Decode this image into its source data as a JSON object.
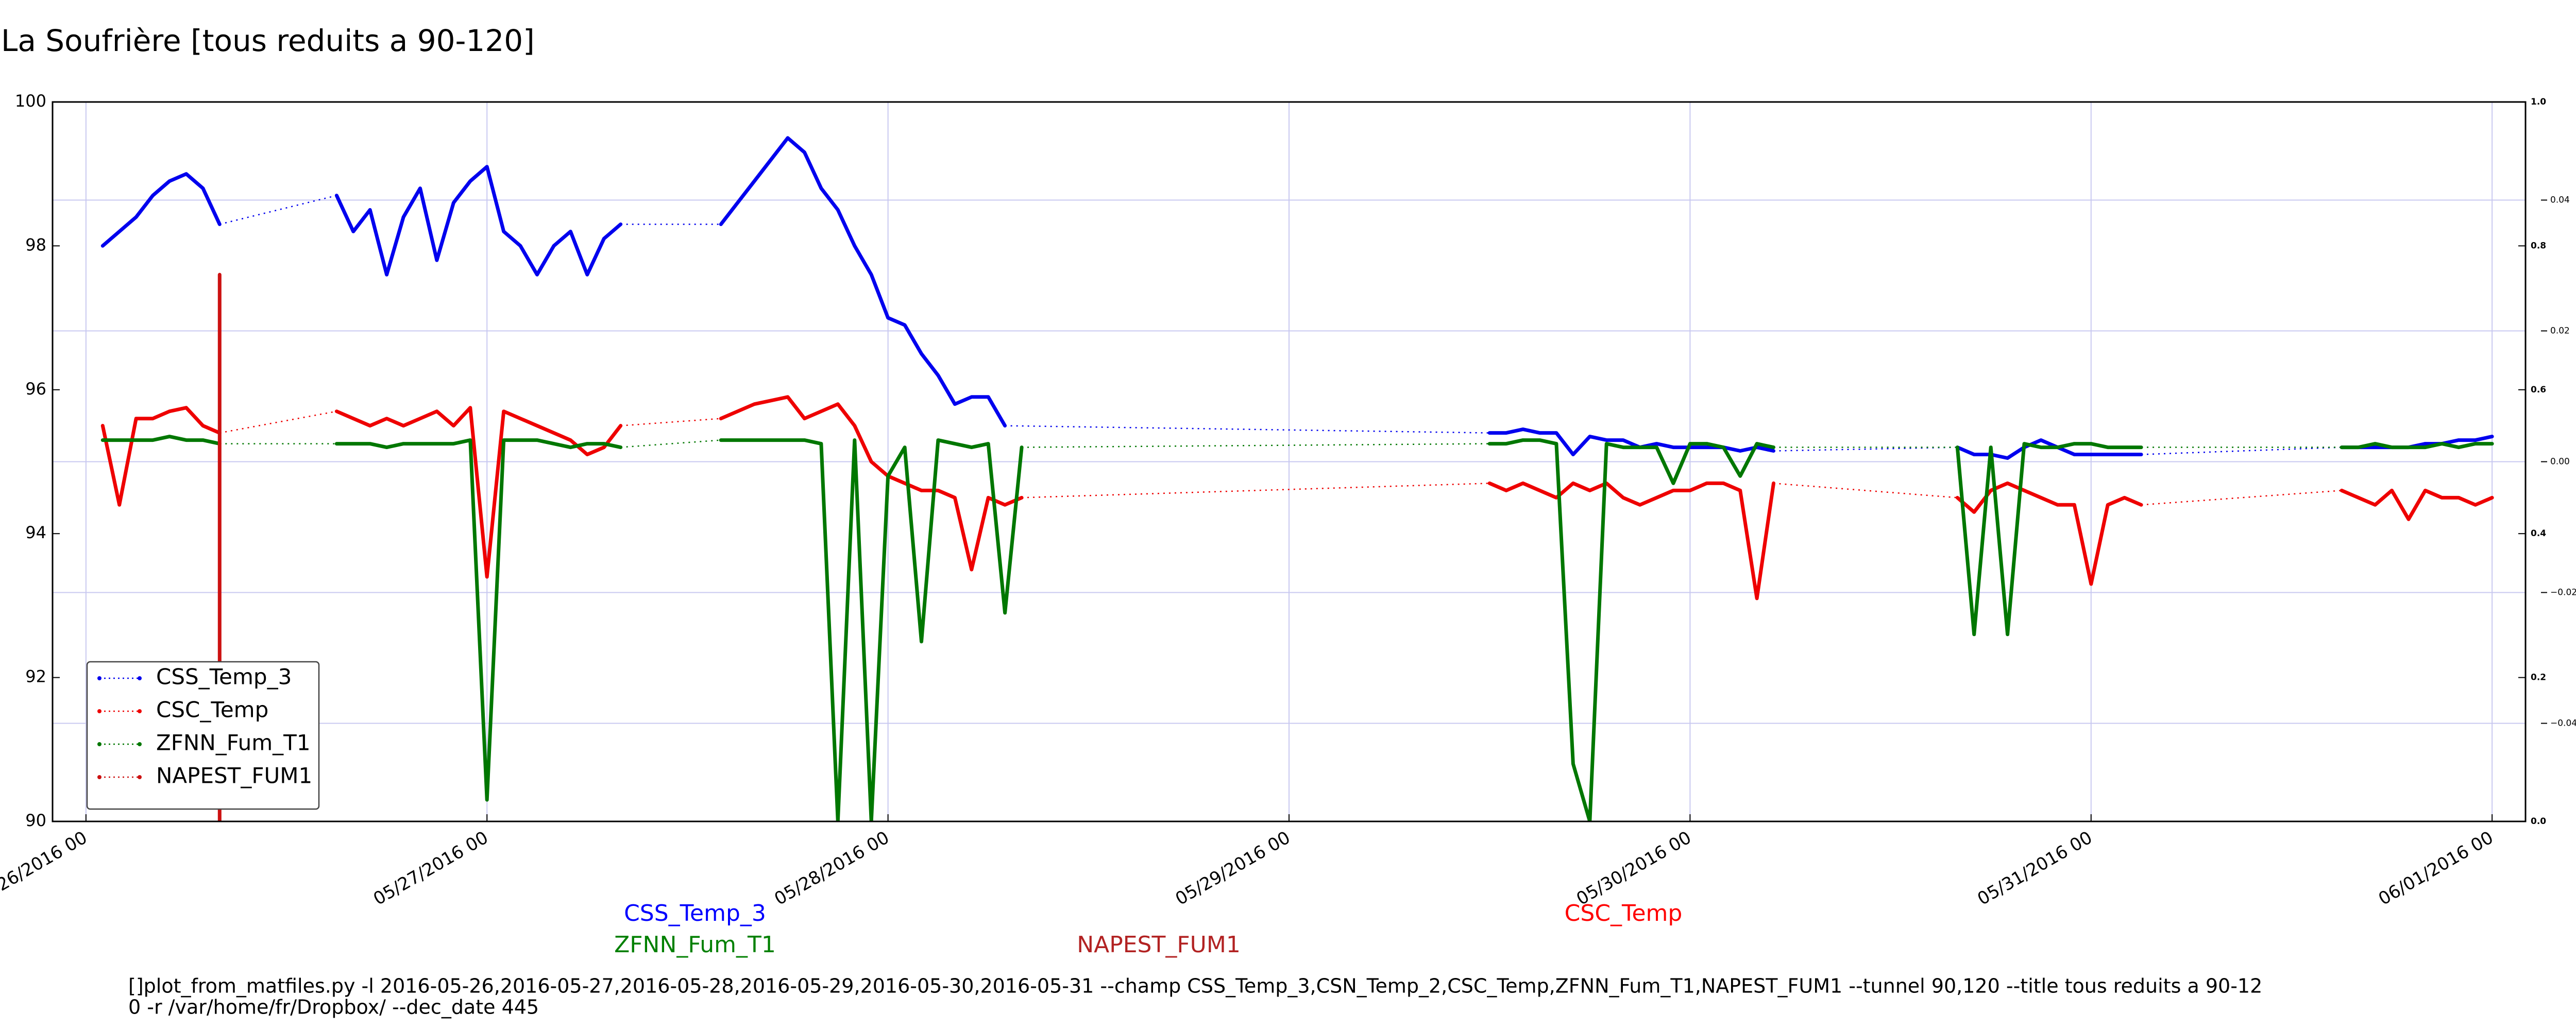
{
  "chart_data": {
    "type": "line",
    "title": "La Soufrière [tous reduits a 90-120]",
    "xlim": [
      "2016-05-25 22",
      "2016-06-01 02"
    ],
    "xticks": [
      {
        "value": "2016-05-26 00",
        "label": "05/26/2016 00"
      },
      {
        "value": "2016-05-27 00",
        "label": "05/27/2016 00"
      },
      {
        "value": "2016-05-28 00",
        "label": "05/28/2016 00"
      },
      {
        "value": "2016-05-29 00",
        "label": "05/29/2016 00"
      },
      {
        "value": "2016-05-30 00",
        "label": "05/30/2016 00"
      },
      {
        "value": "2016-05-31 00",
        "label": "05/31/2016 00"
      },
      {
        "value": "2016-06-01 00",
        "label": "06/01/2016 00"
      }
    ],
    "ylim": [
      90,
      100
    ],
    "yticks": [
      90,
      92,
      94,
      96,
      98,
      100
    ],
    "y2lim": [
      0,
      1
    ],
    "y2ticks": [
      {
        "value": 0,
        "label": "0.0"
      },
      0.2,
      0.4,
      0.6,
      0.8,
      {
        "value": 1,
        "label": "1.0"
      }
    ],
    "y3lim": [
      -0.055,
      0.055
    ],
    "y3ticks": [
      {
        "value": -0.04,
        "label": "−0.04"
      },
      {
        "value": -0.02,
        "label": "−0.02"
      },
      {
        "value": 0,
        "label": "0.00"
      },
      0.02,
      0.04
    ],
    "grid": true,
    "legend": "lower left",
    "series": [
      {
        "name": "CSS_Temp_3",
        "color": "#0000ee",
        "x": [
          "2016-05-26 01",
          "2016-05-26 02",
          "2016-05-26 03",
          "2016-05-26 04",
          "2016-05-26 05",
          "2016-05-26 06",
          "2016-05-26 07",
          "2016-05-26 08",
          "2016-05-26 15",
          "2016-05-26 16",
          "2016-05-26 17",
          "2016-05-26 18",
          "2016-05-26 19",
          "2016-05-26 20",
          "2016-05-26 21",
          "2016-05-26 22",
          "2016-05-26 23",
          "2016-05-27 00",
          "2016-05-27 01",
          "2016-05-27 02",
          "2016-05-27 03",
          "2016-05-27 04",
          "2016-05-27 05",
          "2016-05-27 06",
          "2016-05-27 07",
          "2016-05-27 08",
          "2016-05-27 14",
          "2016-05-27 15",
          "2016-05-27 16",
          "2016-05-27 17",
          "2016-05-27 18",
          "2016-05-27 19",
          "2016-05-27 20",
          "2016-05-27 21",
          "2016-05-27 22",
          "2016-05-27 23",
          "2016-05-28 00",
          "2016-05-28 01",
          "2016-05-28 02",
          "2016-05-28 03",
          "2016-05-28 04",
          "2016-05-28 05",
          "2016-05-28 06",
          "2016-05-28 07",
          "2016-05-29 12",
          "2016-05-29 13",
          "2016-05-29 14",
          "2016-05-29 15",
          "2016-05-29 16",
          "2016-05-29 17",
          "2016-05-29 18",
          "2016-05-29 19",
          "2016-05-29 20",
          "2016-05-29 21",
          "2016-05-29 22",
          "2016-05-29 23",
          "2016-05-30 00",
          "2016-05-30 01",
          "2016-05-30 02",
          "2016-05-30 03",
          "2016-05-30 04",
          "2016-05-30 05",
          "2016-05-30 16",
          "2016-05-30 17",
          "2016-05-30 18",
          "2016-05-30 19",
          "2016-05-30 20",
          "2016-05-30 21",
          "2016-05-30 22",
          "2016-05-30 23",
          "2016-05-31 00",
          "2016-05-31 01",
          "2016-05-31 02",
          "2016-05-31 03",
          "2016-05-31 15",
          "2016-05-31 16",
          "2016-05-31 17",
          "2016-05-31 18",
          "2016-05-31 19",
          "2016-05-31 20",
          "2016-05-31 21",
          "2016-05-31 22",
          "2016-05-31 23",
          "2016-06-01 00"
        ],
        "values": [
          98.0,
          98.2,
          98.4,
          98.7,
          98.9,
          99.0,
          98.8,
          98.3,
          98.7,
          98.2,
          98.5,
          97.6,
          98.4,
          98.8,
          97.8,
          98.6,
          98.9,
          99.1,
          98.2,
          98.0,
          97.6,
          98.0,
          98.2,
          97.6,
          98.1,
          98.3,
          98.3,
          98.6,
          98.9,
          99.2,
          99.5,
          99.3,
          98.8,
          98.5,
          98.0,
          97.6,
          97.0,
          96.9,
          96.5,
          96.2,
          95.8,
          95.9,
          95.9,
          95.5,
          95.4,
          95.4,
          95.45,
          95.4,
          95.4,
          95.1,
          95.35,
          95.3,
          95.3,
          95.2,
          95.25,
          95.2,
          95.2,
          95.2,
          95.2,
          95.15,
          95.2,
          95.15,
          95.2,
          95.1,
          95.1,
          95.05,
          95.2,
          95.3,
          95.2,
          95.1,
          95.1,
          95.1,
          95.1,
          95.1,
          95.2,
          95.2,
          95.2,
          95.2,
          95.2,
          95.25,
          95.25,
          95.3,
          95.3,
          95.35
        ]
      },
      {
        "name": "CSC_Temp",
        "color": "#ee0000",
        "x": [
          "2016-05-26 01",
          "2016-05-26 02",
          "2016-05-26 03",
          "2016-05-26 04",
          "2016-05-26 05",
          "2016-05-26 06",
          "2016-05-26 07",
          "2016-05-26 08",
          "2016-05-26 15",
          "2016-05-26 16",
          "2016-05-26 17",
          "2016-05-26 18",
          "2016-05-26 19",
          "2016-05-26 20",
          "2016-05-26 21",
          "2016-05-26 22",
          "2016-05-26 23",
          "2016-05-27 00",
          "2016-05-27 01",
          "2016-05-27 02",
          "2016-05-27 03",
          "2016-05-27 04",
          "2016-05-27 05",
          "2016-05-27 06",
          "2016-05-27 07",
          "2016-05-27 08",
          "2016-05-27 14",
          "2016-05-27 15",
          "2016-05-27 16",
          "2016-05-27 17",
          "2016-05-27 18",
          "2016-05-27 19",
          "2016-05-27 20",
          "2016-05-27 21",
          "2016-05-27 22",
          "2016-05-27 23",
          "2016-05-28 00",
          "2016-05-28 01",
          "2016-05-28 02",
          "2016-05-28 03",
          "2016-05-28 04",
          "2016-05-28 05",
          "2016-05-28 06",
          "2016-05-28 07",
          "2016-05-28 08",
          "2016-05-29 12",
          "2016-05-29 13",
          "2016-05-29 14",
          "2016-05-29 15",
          "2016-05-29 16",
          "2016-05-29 17",
          "2016-05-29 18",
          "2016-05-29 19",
          "2016-05-29 20",
          "2016-05-29 21",
          "2016-05-29 22",
          "2016-05-29 23",
          "2016-05-30 00",
          "2016-05-30 01",
          "2016-05-30 02",
          "2016-05-30 03",
          "2016-05-30 04",
          "2016-05-30 05",
          "2016-05-30 16",
          "2016-05-30 17",
          "2016-05-30 18",
          "2016-05-30 19",
          "2016-05-30 20",
          "2016-05-30 21",
          "2016-05-30 22",
          "2016-05-30 23",
          "2016-05-31 00",
          "2016-05-31 01",
          "2016-05-31 02",
          "2016-05-31 03",
          "2016-05-31 15",
          "2016-05-31 16",
          "2016-05-31 17",
          "2016-05-31 18",
          "2016-05-31 19",
          "2016-05-31 20",
          "2016-05-31 21",
          "2016-05-31 22",
          "2016-05-31 23",
          "2016-06-01 00"
        ],
        "values": [
          95.5,
          94.4,
          95.6,
          95.6,
          95.7,
          95.75,
          95.5,
          95.4,
          95.7,
          95.6,
          95.5,
          95.6,
          95.5,
          95.6,
          95.7,
          95.5,
          95.75,
          93.4,
          95.7,
          95.6,
          95.5,
          95.4,
          95.3,
          95.1,
          95.2,
          95.5,
          95.6,
          95.7,
          95.8,
          95.85,
          95.9,
          95.6,
          95.7,
          95.8,
          95.5,
          95.0,
          94.8,
          94.7,
          94.6,
          94.6,
          94.5,
          93.5,
          94.5,
          94.4,
          94.5,
          94.7,
          94.6,
          94.7,
          94.6,
          94.5,
          94.7,
          94.6,
          94.7,
          94.5,
          94.4,
          94.5,
          94.6,
          94.6,
          94.7,
          94.7,
          94.6,
          93.1,
          94.7,
          94.5,
          94.3,
          94.6,
          94.7,
          94.6,
          94.5,
          94.4,
          94.4,
          93.3,
          94.4,
          94.5,
          94.4,
          94.6,
          94.5,
          94.4,
          94.6,
          94.2,
          94.6,
          94.5,
          94.5,
          94.4,
          94.5
        ]
      },
      {
        "name": "ZFNN_Fum_T1",
        "color": "#007700",
        "x": [
          "2016-05-26 01",
          "2016-05-26 02",
          "2016-05-26 03",
          "2016-05-26 04",
          "2016-05-26 05",
          "2016-05-26 06",
          "2016-05-26 07",
          "2016-05-26 08",
          "2016-05-26 15",
          "2016-05-26 16",
          "2016-05-26 17",
          "2016-05-26 18",
          "2016-05-26 19",
          "2016-05-26 20",
          "2016-05-26 21",
          "2016-05-26 22",
          "2016-05-26 23",
          "2016-05-27 00",
          "2016-05-27 01",
          "2016-05-27 02",
          "2016-05-27 03",
          "2016-05-27 04",
          "2016-05-27 05",
          "2016-05-27 06",
          "2016-05-27 07",
          "2016-05-27 08",
          "2016-05-27 14",
          "2016-05-27 15",
          "2016-05-27 16",
          "2016-05-27 17",
          "2016-05-27 18",
          "2016-05-27 19",
          "2016-05-27 20",
          "2016-05-27 21",
          "2016-05-27 22",
          "2016-05-27 23",
          "2016-05-28 00",
          "2016-05-28 01",
          "2016-05-28 02",
          "2016-05-28 03",
          "2016-05-28 04",
          "2016-05-28 05",
          "2016-05-28 06",
          "2016-05-28 07",
          "2016-05-28 08",
          "2016-05-29 12",
          "2016-05-29 13",
          "2016-05-29 14",
          "2016-05-29 15",
          "2016-05-29 16",
          "2016-05-29 17",
          "2016-05-29 18",
          "2016-05-29 19",
          "2016-05-29 20",
          "2016-05-29 21",
          "2016-05-29 22",
          "2016-05-29 23",
          "2016-05-30 00",
          "2016-05-30 01",
          "2016-05-30 02",
          "2016-05-30 03",
          "2016-05-30 04",
          "2016-05-30 05",
          "2016-05-30 16",
          "2016-05-30 17",
          "2016-05-30 18",
          "2016-05-30 19",
          "2016-05-30 20",
          "2016-05-30 21",
          "2016-05-30 22",
          "2016-05-30 23",
          "2016-05-31 00",
          "2016-05-31 01",
          "2016-05-31 02",
          "2016-05-31 03",
          "2016-05-31 15",
          "2016-05-31 16",
          "2016-05-31 17",
          "2016-05-31 18",
          "2016-05-31 19",
          "2016-05-31 20",
          "2016-05-31 21",
          "2016-05-31 22",
          "2016-05-31 23",
          "2016-06-01 00"
        ],
        "values": [
          95.3,
          95.3,
          95.3,
          95.3,
          95.35,
          95.3,
          95.3,
          95.25,
          95.25,
          95.25,
          95.25,
          95.2,
          95.25,
          95.25,
          95.25,
          95.25,
          95.3,
          90.3,
          95.3,
          95.3,
          95.3,
          95.25,
          95.2,
          95.25,
          95.25,
          95.2,
          95.3,
          95.3,
          95.3,
          95.3,
          95.3,
          95.3,
          95.25,
          90.0,
          95.3,
          90.0,
          94.8,
          95.2,
          92.5,
          95.3,
          95.25,
          95.2,
          95.25,
          92.9,
          95.2,
          95.25,
          95.25,
          95.3,
          95.3,
          95.25,
          90.8,
          90.0,
          95.25,
          95.2,
          95.2,
          95.2,
          94.7,
          95.25,
          95.25,
          95.2,
          94.8,
          95.25,
          95.2,
          95.2,
          92.6,
          95.2,
          92.6,
          95.25,
          95.2,
          95.2,
          95.25,
          95.25,
          95.2,
          95.2,
          95.2,
          95.2,
          95.2,
          95.25,
          95.2,
          95.2,
          95.2,
          95.25,
          95.2,
          95.25,
          95.25
        ]
      },
      {
        "name": "NAPEST_FUM1",
        "color": "#cc1111",
        "x": [
          "2016-05-26 08",
          "2016-05-26 08",
          "2016-05-26 08"
        ],
        "values": [
          90.0,
          97.6,
          90.0
        ]
      }
    ],
    "annotations": [
      {
        "text": "CSS_Temp_3",
        "color": "#0000ff"
      },
      {
        "text": "ZFNN_Fum_T1",
        "color": "#008000"
      },
      {
        "text": "NAPEST_FUM1",
        "color": "#b22222"
      },
      {
        "text": "CSC_Temp",
        "color": "#ff0000"
      }
    ],
    "footnote": [
      "[]plot_from_matfiles.py -l 2016-05-26,2016-05-27,2016-05-28,2016-05-29,2016-05-30,2016-05-31 --champ CSS_Temp_3,CSN_Temp_2,CSC_Temp,ZFNN_Fum_T1,NAPEST_FUM1 --tunnel 90,120 --title tous reduits a 90-12",
      "0 -r /var/home/fr/Dropbox/ --dec_date 445"
    ]
  }
}
